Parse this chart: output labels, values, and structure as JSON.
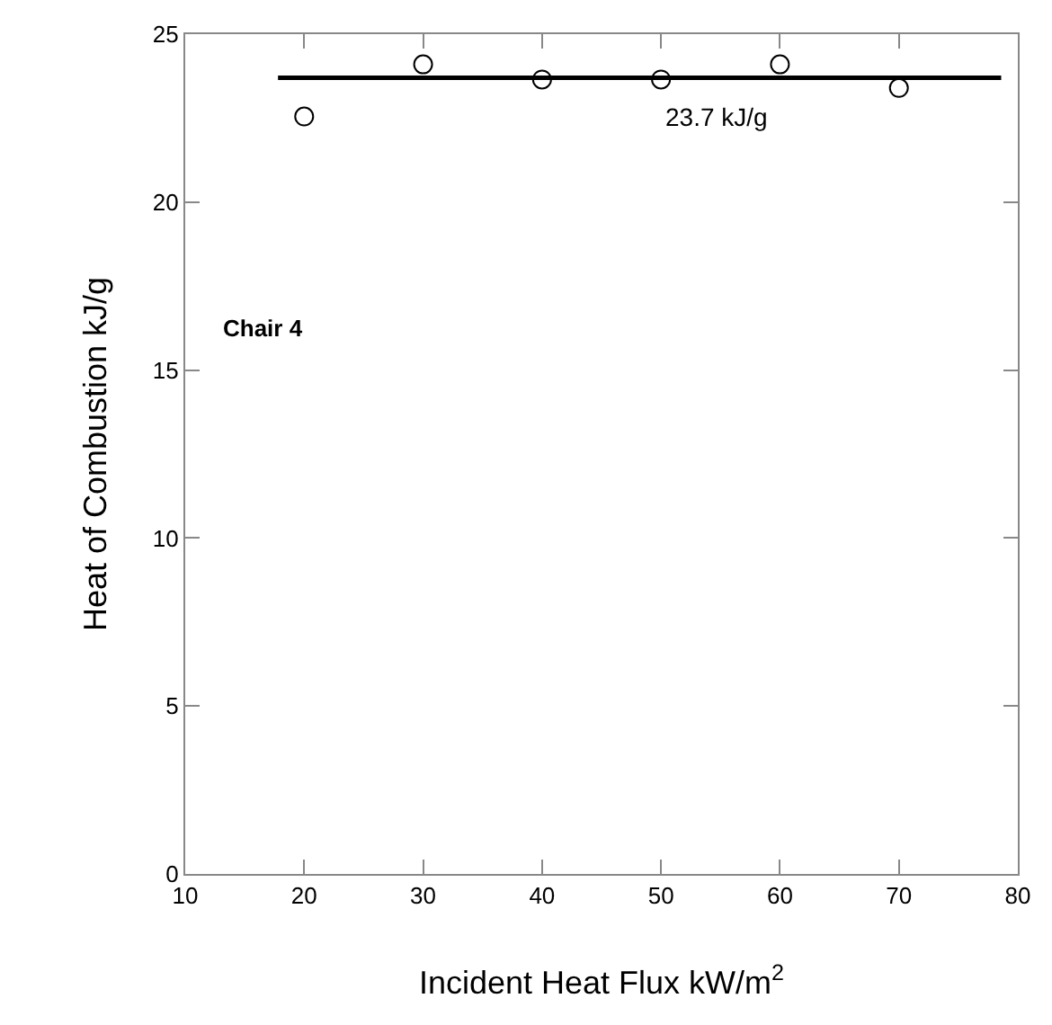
{
  "chart_data": {
    "type": "scatter",
    "xlabel": "Incident Heat Flux kW/m$^{2}$",
    "ylabel": "Heat of Combustion kJ/g",
    "xlim": [
      10,
      80
    ],
    "xticks": [
      10,
      20,
      30,
      40,
      50,
      60,
      70,
      80
    ],
    "ylim": [
      0,
      25
    ],
    "yticks": [
      0,
      5,
      10,
      15,
      20,
      25
    ],
    "marker": "circle",
    "series": [
      {
        "color": "#000000",
        "x": [
          20,
          30,
          40,
          50,
          60,
          70
        ],
        "values": [
          22.55,
          24.1,
          23.65,
          23.65,
          24.1,
          23.4
        ]
      },
      {
        "type": "line",
        "color": "#000000",
        "marker": "none",
        "line_style": "solid",
        "x": [
          17.8,
          78.6
        ],
        "values": [
          23.7,
          23.7
        ]
      }
    ],
    "annotations": [
      {
        "text": "23.7 kJ/g",
        "x": 50,
        "y": 23.7
      },
      "Chair 4"
    ]
  }
}
